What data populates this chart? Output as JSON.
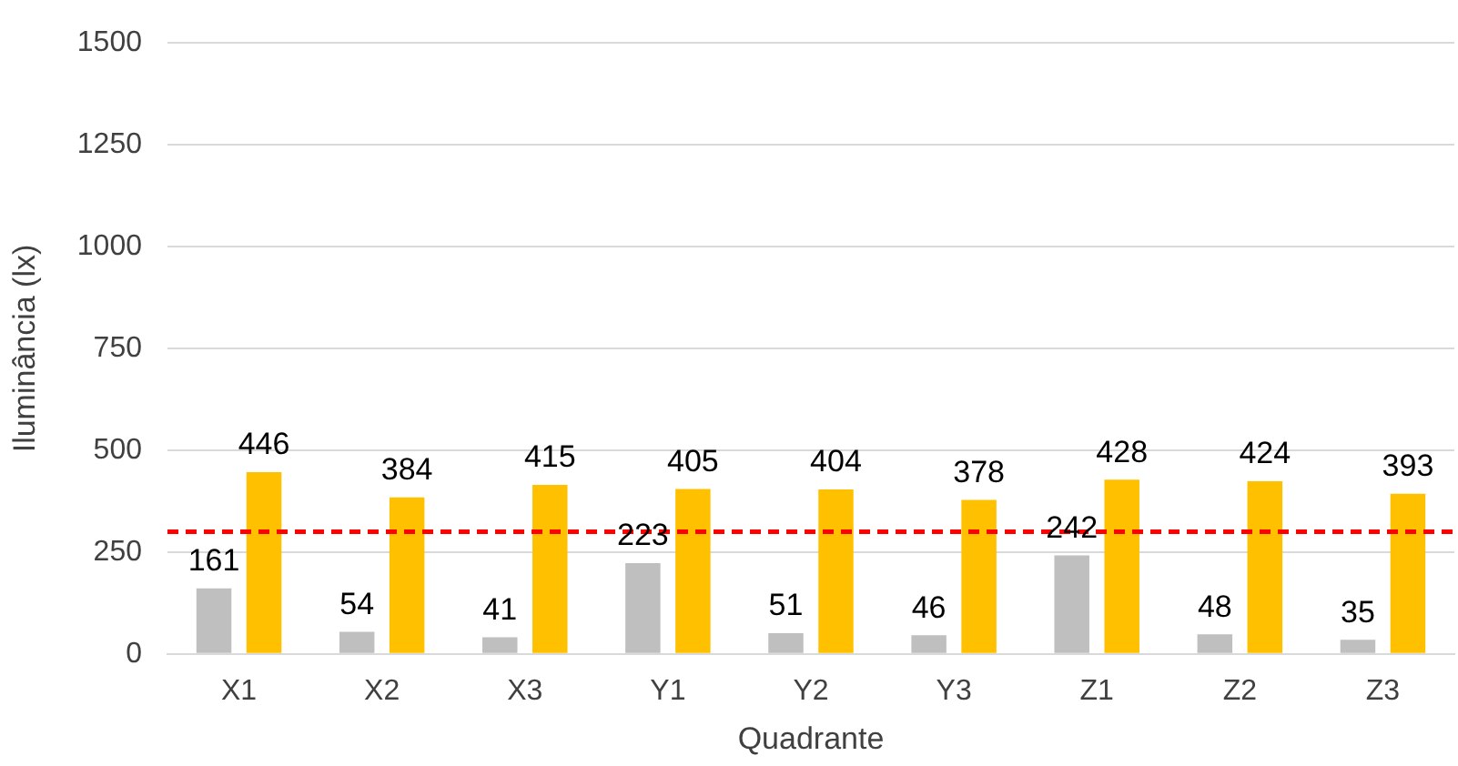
{
  "chart_data": {
    "type": "bar",
    "xlabel": "Quadrante",
    "ylabel": "Iluminância (lx)",
    "categories": [
      "X1",
      "X2",
      "X3",
      "Y1",
      "Y2",
      "Y3",
      "Z1",
      "Z2",
      "Z3"
    ],
    "series": [
      {
        "color": "#bfbfbf",
        "values": [
          161,
          54,
          41,
          223,
          51,
          46,
          242,
          48,
          35
        ]
      },
      {
        "color": "#ffc000",
        "values": [
          446,
          384,
          415,
          405,
          404,
          378,
          428,
          424,
          393
        ]
      }
    ],
    "ylim": [
      0,
      1500
    ],
    "yticks": [
      0,
      250,
      500,
      750,
      1000,
      1250,
      1500
    ],
    "grid": "y",
    "legend": false,
    "data_labels": true,
    "ref_lines": [
      {
        "axis": "y",
        "value": 300,
        "color": "#ff0000",
        "line_style": "dashed"
      }
    ]
  }
}
